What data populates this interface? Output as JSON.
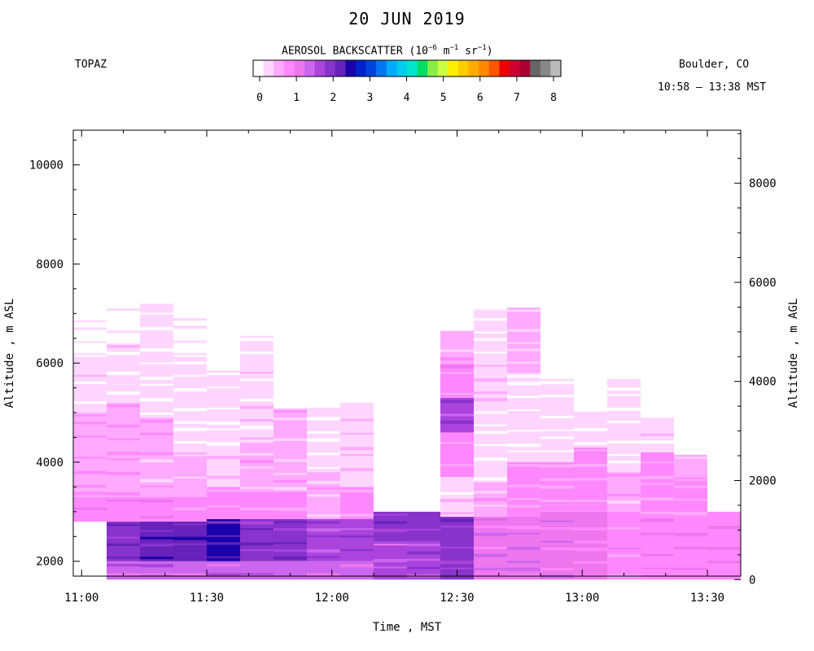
{
  "title": "20 JUN 2019",
  "instrument": "TOPAZ",
  "location": "Boulder, CO",
  "time_range": "10:58 – 13:38 MST",
  "colorbar": {
    "title_main": "AEROSOL BACKSCATTER (10",
    "title_exp1": "−6",
    "title_mid": " m",
    "title_exp2": "−1",
    "title_mid2": " sr",
    "title_exp3": "−1",
    "title_end": ")",
    "tick_labels": [
      "0",
      "1",
      "2",
      "3",
      "4",
      "5",
      "6",
      "7",
      "8"
    ],
    "colors": [
      "#ffffff",
      "#ffd6ff",
      "#ffaaff",
      "#ff88ff",
      "#ee77ee",
      "#cc66ee",
      "#aa44dd",
      "#8833cc",
      "#6622bb",
      "#1a00aa",
      "#0022cc",
      "#0044dd",
      "#0077ee",
      "#00aaff",
      "#00ccee",
      "#00e5cc",
      "#00dd66",
      "#88ee44",
      "#ccff44",
      "#ffee00",
      "#ffcc00",
      "#ffaa00",
      "#ff8800",
      "#ff5500",
      "#ee0000",
      "#cc0033",
      "#aa0033",
      "#666666",
      "#888888",
      "#bbbbbb"
    ]
  },
  "chart_data": {
    "type": "heatmap",
    "title": "20 JUN 2019",
    "xlabel": "Time , MST",
    "ylabel_left": "Altitude , m ASL",
    "ylabel_right": "Altitude , m AGL",
    "x_ticks": [
      "11:00",
      "11:30",
      "12:00",
      "12:30",
      "13:00",
      "13:30"
    ],
    "y_ticks_left": [
      2000,
      4000,
      6000,
      8000,
      10000
    ],
    "y_ticks_right": [
      0,
      2000,
      4000,
      6000,
      8000
    ],
    "xlim": [
      "10:58",
      "13:38"
    ],
    "ylim_asl": [
      1700,
      10700
    ],
    "surface_asl": 1630,
    "value_range": [
      0,
      8
    ],
    "columns": [
      {
        "start": "10:58",
        "end": "11:06",
        "ground_top": 2800,
        "top": 6900,
        "layers": [
          [
            2800,
            3300,
            1.0
          ],
          [
            3300,
            5000,
            0.75
          ],
          [
            5000,
            6200,
            0.35
          ],
          [
            6200,
            6900,
            0.25
          ]
        ]
      },
      {
        "start": "11:06",
        "end": "11:14",
        "top": 7150,
        "layers": [
          [
            1720,
            2000,
            1.4
          ],
          [
            2000,
            2800,
            2.1
          ],
          [
            2800,
            3300,
            1.0
          ],
          [
            3300,
            5200,
            0.75
          ],
          [
            5200,
            6400,
            0.35
          ],
          [
            6400,
            7150,
            0.25
          ]
        ]
      },
      {
        "start": "11:14",
        "end": "11:22",
        "top": 7200,
        "layers": [
          [
            1720,
            2000,
            1.4
          ],
          [
            2000,
            2800,
            2.2
          ],
          [
            2800,
            3300,
            1.0
          ],
          [
            3300,
            4900,
            0.7
          ],
          [
            4900,
            6200,
            0.3
          ],
          [
            6200,
            7200,
            0.3
          ]
        ]
      },
      {
        "start": "11:22",
        "end": "11:30",
        "top": 7100,
        "layers": [
          [
            1720,
            2000,
            1.4
          ],
          [
            2000,
            2800,
            2.2
          ],
          [
            2800,
            3300,
            0.9
          ],
          [
            3300,
            4200,
            0.6
          ],
          [
            4200,
            6200,
            0.3
          ],
          [
            6200,
            7100,
            0.25
          ]
        ]
      },
      {
        "start": "11:30",
        "end": "11:38",
        "top": 6850,
        "gap": [
          5850,
          6600
        ],
        "layers": [
          [
            1720,
            2000,
            1.4
          ],
          [
            2000,
            2850,
            2.4
          ],
          [
            2850,
            3500,
            0.8
          ],
          [
            3500,
            4300,
            0.5
          ],
          [
            4300,
            5850,
            0.3
          ],
          [
            6600,
            6850,
            0.25
          ]
        ]
      },
      {
        "start": "11:38",
        "end": "11:46",
        "top": 6550,
        "layers": [
          [
            1720,
            2000,
            1.4
          ],
          [
            2000,
            2850,
            2.0
          ],
          [
            2850,
            3400,
            0.8
          ],
          [
            3400,
            4500,
            0.6
          ],
          [
            4500,
            6000,
            0.4
          ],
          [
            6000,
            6550,
            0.3
          ]
        ]
      },
      {
        "start": "11:46",
        "end": "11:54",
        "top": 5080,
        "layers": [
          [
            1720,
            2000,
            1.4
          ],
          [
            2000,
            2850,
            2.0
          ],
          [
            2850,
            3400,
            0.9
          ],
          [
            3400,
            5080,
            0.6
          ]
        ]
      },
      {
        "start": "11:54",
        "end": "12:02",
        "top": 5100,
        "layers": [
          [
            1720,
            2000,
            1.4
          ],
          [
            2000,
            2850,
            1.8
          ],
          [
            2850,
            3800,
            0.6
          ],
          [
            3800,
            5100,
            0.3
          ]
        ]
      },
      {
        "start": "12:02",
        "end": "12:10",
        "top": 5200,
        "layers": [
          [
            1720,
            2000,
            1.4
          ],
          [
            2000,
            2850,
            1.8
          ],
          [
            2850,
            3500,
            0.8
          ],
          [
            3500,
            5200,
            0.5
          ]
        ]
      },
      {
        "start": "12:10",
        "end": "12:18",
        "top": 3000,
        "layers": [
          [
            1720,
            2400,
            1.6
          ],
          [
            2400,
            3000,
            1.9
          ]
        ]
      },
      {
        "start": "12:18",
        "end": "12:26",
        "top": 3000,
        "layers": [
          [
            1720,
            2400,
            1.7
          ],
          [
            2400,
            3000,
            1.9
          ]
        ]
      },
      {
        "start": "12:26",
        "end": "12:34",
        "top": 6650,
        "layers": [
          [
            1720,
            2900,
            1.9
          ],
          [
            2900,
            3700,
            0.4
          ],
          [
            3700,
            4600,
            0.8
          ],
          [
            4600,
            5300,
            1.8
          ],
          [
            5300,
            6000,
            0.9
          ],
          [
            6000,
            6650,
            0.7
          ]
        ]
      },
      {
        "start": "12:34",
        "end": "12:42",
        "top": 7080,
        "layers": [
          [
            1720,
            2900,
            1.3
          ],
          [
            2900,
            3600,
            0.6
          ],
          [
            3600,
            5200,
            0.3
          ],
          [
            5200,
            6000,
            0.5
          ],
          [
            6000,
            7080,
            0.3
          ]
        ]
      },
      {
        "start": "12:42",
        "end": "12:50",
        "top": 7120,
        "layers": [
          [
            1720,
            2900,
            1.3
          ],
          [
            2900,
            4000,
            0.8
          ],
          [
            4000,
            5800,
            0.3
          ],
          [
            5800,
            7120,
            0.55
          ]
        ]
      },
      {
        "start": "12:50",
        "end": "12:58",
        "top": 5680,
        "layers": [
          [
            1720,
            3000,
            1.2
          ],
          [
            3000,
            4000,
            0.8
          ],
          [
            4000,
            5680,
            0.3
          ]
        ]
      },
      {
        "start": "12:58",
        "end": "13:06",
        "top": 5020,
        "layers": [
          [
            1720,
            3000,
            1.1
          ],
          [
            3000,
            4300,
            0.8
          ],
          [
            4300,
            5020,
            0.3
          ]
        ]
      },
      {
        "start": "13:06",
        "end": "13:14",
        "top": 5680,
        "layers": [
          [
            1720,
            3000,
            0.9
          ],
          [
            3000,
            3800,
            0.7
          ],
          [
            3800,
            5680,
            0.3
          ]
        ]
      },
      {
        "start": "13:14",
        "end": "13:22",
        "top": 4900,
        "layers": [
          [
            1720,
            2900,
            1.0
          ],
          [
            2900,
            4200,
            0.8
          ],
          [
            4200,
            4900,
            0.35
          ]
        ]
      },
      {
        "start": "13:22",
        "end": "13:30",
        "top": 4150,
        "layers": [
          [
            1720,
            2900,
            1.0
          ],
          [
            2900,
            3700,
            0.8
          ],
          [
            3700,
            4150,
            0.55
          ]
        ]
      },
      {
        "start": "13:30",
        "end": "13:38",
        "top": 3000,
        "layers": [
          [
            1720,
            2900,
            1.0
          ],
          [
            2900,
            3000,
            0.9
          ]
        ]
      }
    ]
  }
}
